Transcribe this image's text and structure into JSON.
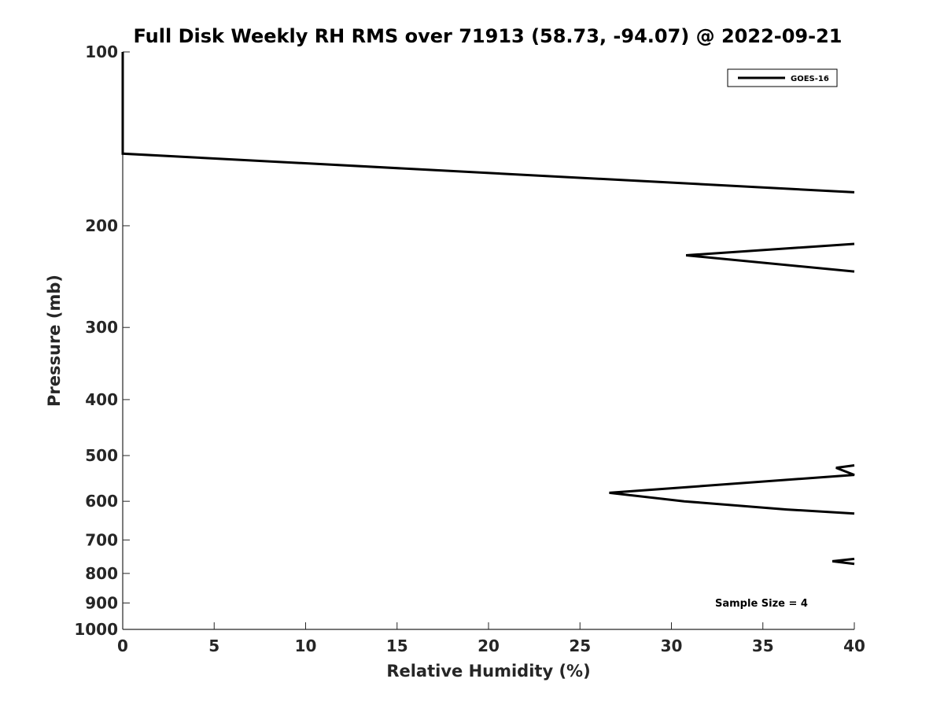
{
  "chart_data": {
    "type": "line",
    "title": "Full Disk Weekly RH RMS over 71913 (58.73, -94.07) @ 2022-09-21",
    "xlabel": "Relative Humidity (%)",
    "ylabel": "Pressure (mb)",
    "xlim": [
      0,
      40
    ],
    "ylim": [
      100,
      1000
    ],
    "y_scale": "log",
    "y_reversed": true,
    "x_ticks": [
      0,
      5,
      10,
      15,
      20,
      25,
      30,
      35,
      40
    ],
    "x_tick_labels": [
      "0",
      "5",
      "10",
      "15",
      "20",
      "25",
      "30",
      "35",
      "40"
    ],
    "y_ticks": [
      100,
      200,
      300,
      400,
      500,
      600,
      700,
      800,
      900,
      1000
    ],
    "y_tick_labels": [
      "100",
      "200",
      "300",
      "400",
      "500",
      "600",
      "700",
      "800",
      "900",
      "1000"
    ],
    "grid": false,
    "legend_position": "top-right",
    "annotation": "Sample Size = 4",
    "line_color": "#000000",
    "series": [
      {
        "name": "GOES-16",
        "segments": [
          [
            [
              0,
              100
            ],
            [
              0,
              125
            ],
            [
              0,
              150
            ],
            [
              40,
              175
            ]
          ],
          [
            [
              40,
              215
            ],
            [
              30.8,
              225
            ],
            [
              40,
              240
            ]
          ],
          [
            [
              40,
              520
            ],
            [
              39,
              525
            ],
            [
              40,
              540
            ],
            [
              26.6,
              580
            ],
            [
              30.7,
              600
            ],
            [
              36.3,
              620
            ],
            [
              40,
              630
            ]
          ],
          [
            [
              40,
              755
            ],
            [
              38.8,
              762
            ],
            [
              40,
              770
            ]
          ]
        ]
      }
    ]
  }
}
